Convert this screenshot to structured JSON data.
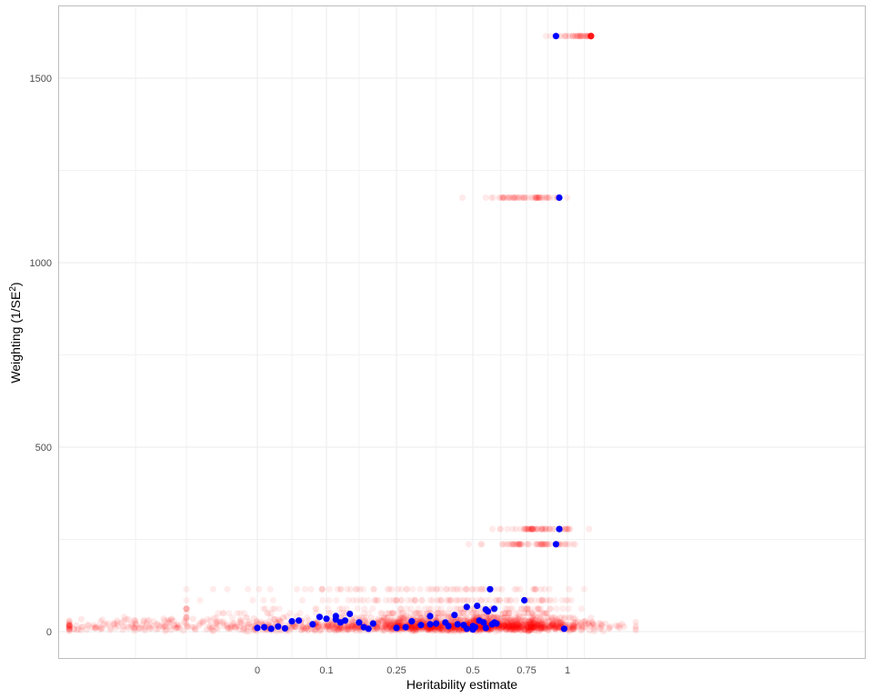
{
  "chart_data": {
    "type": "scatter",
    "xlabel": "Heritability estimate",
    "ylabel_main": "Weighting (1/SE",
    "ylabel_sup": "2",
    "ylabel_end": ")",
    "xlim": [
      -0.35,
      1.35
    ],
    "ylim": [
      -72,
      1705
    ],
    "x_scale": "logit-like (labels shown at 0, 0.1, 0.25, 0.5, 0.75, 1)",
    "x_ticks": [
      {
        "value": 0,
        "label": "0"
      },
      {
        "value": 0.1,
        "label": "0.1"
      },
      {
        "value": 0.25,
        "label": "0.25"
      },
      {
        "value": 0.5,
        "label": "0.5"
      },
      {
        "value": 0.75,
        "label": "0.75"
      },
      {
        "value": 1,
        "label": "1"
      }
    ],
    "y_ticks": [
      {
        "value": 0,
        "label": "0"
      },
      {
        "value": 500,
        "label": "500"
      },
      {
        "value": 1000,
        "label": "1000"
      },
      {
        "value": 1500,
        "label": "1500"
      }
    ],
    "grid": true,
    "colors": {
      "background_points": "#ff0000",
      "highlight_points": "#0000ff",
      "panel_border": "#bdbdbd",
      "grid": "#ebebeb"
    },
    "series": [
      {
        "role": "highlighted estimates",
        "color": "#0000ff",
        "points": [
          [
            0.93,
            1614
          ],
          [
            0.95,
            1176
          ],
          [
            0.95,
            278
          ],
          [
            0.93,
            237
          ],
          [
            0.58,
            115
          ],
          [
            0.74,
            85
          ],
          [
            0.48,
            67
          ],
          [
            0.52,
            70
          ],
          [
            0.57,
            55
          ],
          [
            0.56,
            60
          ],
          [
            0.6,
            62
          ],
          [
            0.44,
            45
          ],
          [
            0.36,
            42
          ],
          [
            0.15,
            48
          ],
          [
            0.12,
            42
          ],
          [
            0.09,
            40
          ],
          [
            0.1,
            35
          ],
          [
            0.12,
            33
          ],
          [
            0.14,
            30
          ],
          [
            0.13,
            25
          ],
          [
            0.06,
            30
          ],
          [
            0.05,
            28
          ],
          [
            0.08,
            20
          ],
          [
            0.17,
            25
          ],
          [
            0.2,
            22
          ],
          [
            0.18,
            12
          ],
          [
            0.19,
            8
          ],
          [
            0.25,
            10
          ],
          [
            0.28,
            12
          ],
          [
            0.3,
            28
          ],
          [
            0.33,
            18
          ],
          [
            0.36,
            20
          ],
          [
            0.38,
            22
          ],
          [
            0.41,
            25
          ],
          [
            0.42,
            15
          ],
          [
            0.45,
            20
          ],
          [
            0.47,
            18
          ],
          [
            0.5,
            15
          ],
          [
            0.51,
            12
          ],
          [
            0.53,
            30
          ],
          [
            0.55,
            25
          ],
          [
            0.59,
            20
          ],
          [
            0.6,
            25
          ],
          [
            0.61,
            22
          ],
          [
            0.48,
            8
          ],
          [
            0.5,
            6
          ],
          [
            0.56,
            10
          ],
          [
            0.03,
            14
          ],
          [
            0.01,
            12
          ],
          [
            0.0,
            10
          ],
          [
            0.02,
            8
          ],
          [
            0.04,
            9
          ],
          [
            0.98,
            8
          ]
        ]
      }
    ]
  }
}
